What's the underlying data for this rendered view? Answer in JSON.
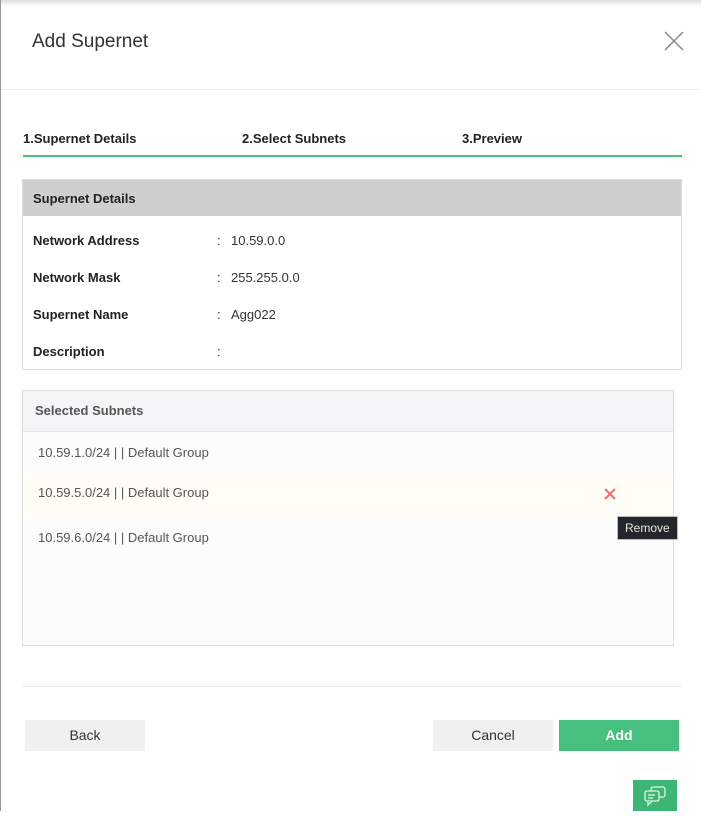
{
  "dialog": {
    "title": "Add Supernet"
  },
  "steps": [
    "1.Supernet Details",
    "2.Select Subnets",
    "3.Preview"
  ],
  "details": {
    "header": "Supernet Details",
    "rows": [
      {
        "label": "Network Address",
        "value": "10.59.0.0"
      },
      {
        "label": "Network Mask",
        "value": "255.255.0.0"
      },
      {
        "label": "Supernet Name",
        "value": "Agg022"
      },
      {
        "label": "Description",
        "value": ""
      }
    ]
  },
  "subnets": {
    "header": "Selected Subnets",
    "items": [
      "10.59.1.0/24 | | Default Group",
      "10.59.5.0/24 | | Default Group",
      "10.59.6.0/24 | | Default Group"
    ],
    "tooltip": "Remove"
  },
  "buttons": {
    "back": "Back",
    "cancel": "Cancel",
    "add": "Add"
  },
  "colors": {
    "accent": "#47c07f",
    "remove": "#f26b6b"
  }
}
